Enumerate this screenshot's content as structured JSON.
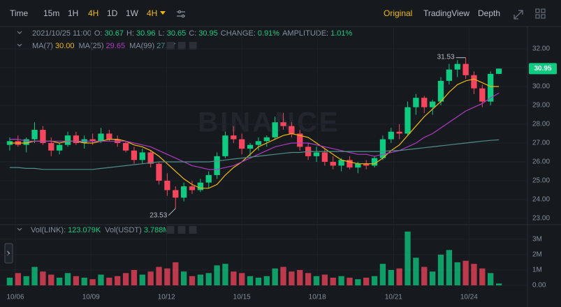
{
  "toolbar": {
    "left": [
      "Time",
      "15m",
      "1H",
      "4H",
      "1D",
      "1W",
      "4H"
    ],
    "active_left": [
      3,
      6
    ],
    "right": [
      "Original",
      "TradingView",
      "Depth"
    ],
    "active_right": 0
  },
  "info": {
    "datetime": "2021/10/25 11:00",
    "fields": [
      [
        "O:",
        "30.67"
      ],
      [
        "H:",
        "30.96"
      ],
      [
        "L:",
        "30.65"
      ],
      [
        "C:",
        "30.95"
      ],
      [
        "CHANGE:",
        "0.91%"
      ],
      [
        "AMPLITUDE:",
        "1.01%"
      ]
    ]
  },
  "chart_data": {
    "type": "candlestick",
    "watermark": "BINANCE",
    "up_color": "#0ecb81",
    "down_color": "#f6465d",
    "grid": true,
    "xlim": [
      -0.5,
      59.5
    ],
    "xticks": [
      {
        "value": 0.68,
        "label": "10/06"
      },
      {
        "value": 9.8,
        "label": "10/09"
      },
      {
        "value": 18.9,
        "label": "10/12"
      },
      {
        "value": 28,
        "label": "10/15"
      },
      {
        "value": 37.1,
        "label": "10/18"
      },
      {
        "value": 46.3,
        "label": "10/21"
      },
      {
        "value": 55.4,
        "label": "10/24"
      }
    ],
    "ylim": [
      22.74,
      33.11
    ],
    "yticks": [
      {
        "value": 23,
        "label": "23.00"
      },
      {
        "value": 24,
        "label": "24.00"
      },
      {
        "value": 25,
        "label": "25.00"
      },
      {
        "value": 26,
        "label": "26.00"
      },
      {
        "value": 27,
        "label": "27.00"
      },
      {
        "value": 28,
        "label": "28.00"
      },
      {
        "value": 29,
        "label": "29.00"
      },
      {
        "value": 30,
        "label": "30.00"
      },
      {
        "value": 31,
        "label": "31.00"
      },
      {
        "value": 32,
        "label": "32.00"
      }
    ],
    "open": [
      26.9,
      27.1,
      26.9,
      27.2,
      27.7,
      27.0,
      26.6,
      26.9,
      27.4,
      27.0,
      27.2,
      27.1,
      27.5,
      27.2,
      27.0,
      26.6,
      26.1,
      26.5,
      25.9,
      25.0,
      24.5,
      24.1,
      24.7,
      24.5,
      24.9,
      25.3,
      26.3,
      27.4,
      27.2,
      26.7,
      26.9,
      27.1,
      27.3,
      28.1,
      27.9,
      27.5,
      26.8,
      26.3,
      26.5,
      26.0,
      25.8,
      26.1,
      25.7,
      25.9,
      25.8,
      26.2,
      27.2,
      27.6,
      27.5,
      28.9,
      29.4,
      28.9,
      29.2,
      30.3,
      30.9,
      31.2,
      30.6,
      29.9,
      29.2,
      30.67
    ],
    "high": [
      27.3,
      27.4,
      27.3,
      28.1,
      27.9,
      27.3,
      27.0,
      27.6,
      27.6,
      27.4,
      27.5,
      27.8,
      27.7,
      27.4,
      27.1,
      26.8,
      26.7,
      26.6,
      26.0,
      25.4,
      24.7,
      24.9,
      25.0,
      25.1,
      25.5,
      26.5,
      27.6,
      27.9,
      27.5,
      27.0,
      27.3,
      27.4,
      28.4,
      28.6,
      28.1,
      27.7,
      27.0,
      26.8,
      26.7,
      26.3,
      26.2,
      26.3,
      26.0,
      26.1,
      26.3,
      27.4,
      27.8,
      28.0,
      29.2,
      29.6,
      29.5,
      29.3,
      30.5,
      31.2,
      31.4,
      31.53,
      30.8,
      30.1,
      30.8,
      30.96
    ],
    "low": [
      26.6,
      26.8,
      26.5,
      27.0,
      26.9,
      26.3,
      26.4,
      26.8,
      26.9,
      26.7,
      26.9,
      27.0,
      27.1,
      26.8,
      26.5,
      25.9,
      25.9,
      25.7,
      24.8,
      24.2,
      23.53,
      23.9,
      24.3,
      24.4,
      24.6,
      25.1,
      26.2,
      27.0,
      26.4,
      26.3,
      26.6,
      26.8,
      27.2,
      27.7,
      27.3,
      26.6,
      26.1,
      26.0,
      25.8,
      25.6,
      25.5,
      25.6,
      25.4,
      25.6,
      25.7,
      26.1,
      27.0,
      27.2,
      27.4,
      28.5,
      28.6,
      28.5,
      29.0,
      30.1,
      30.5,
      30.4,
      29.6,
      28.9,
      29.0,
      30.65
    ],
    "close": [
      27.1,
      26.9,
      27.2,
      27.7,
      27.0,
      26.6,
      26.9,
      27.4,
      27.0,
      27.2,
      27.1,
      27.5,
      27.2,
      27.0,
      26.6,
      26.1,
      26.5,
      25.9,
      25.0,
      24.5,
      24.1,
      24.7,
      24.5,
      24.9,
      25.3,
      26.3,
      27.4,
      27.2,
      26.7,
      26.9,
      27.1,
      27.3,
      28.1,
      27.9,
      27.5,
      26.8,
      26.3,
      26.5,
      26.0,
      25.8,
      26.1,
      25.7,
      25.9,
      25.8,
      26.2,
      27.2,
      27.6,
      27.5,
      28.9,
      29.4,
      28.9,
      29.2,
      30.3,
      30.9,
      31.2,
      30.6,
      29.9,
      29.2,
      30.67,
      30.95
    ],
    "last_price": 30.95,
    "ma": [
      {
        "name": "MA(7)",
        "current": "30.00",
        "color": "#f0b90b",
        "values": [
          27.0,
          27.0,
          27.0,
          27.1,
          27.1,
          27.1,
          27.0,
          27.1,
          27.1,
          27.0,
          27.0,
          27.1,
          27.2,
          27.2,
          27.1,
          26.9,
          26.8,
          26.6,
          26.3,
          25.9,
          25.5,
          25.1,
          24.8,
          24.6,
          24.6,
          24.8,
          25.3,
          25.7,
          26.0,
          26.4,
          26.8,
          27.0,
          27.2,
          27.4,
          27.5,
          27.4,
          27.3,
          27.0,
          26.7,
          26.4,
          26.1,
          26.0,
          25.9,
          25.9,
          25.9,
          26.2,
          26.6,
          26.9,
          27.4,
          27.9,
          28.4,
          28.8,
          29.2,
          29.7,
          30.1,
          30.3,
          30.4,
          30.2,
          30.0,
          30.0
        ]
      },
      {
        "name": "MA(25)",
        "current": "29.65",
        "color": "#b03ac4",
        "values": [
          27.2,
          27.2,
          27.1,
          27.1,
          27.1,
          27.1,
          27.1,
          27.1,
          27.1,
          27.1,
          27.1,
          27.1,
          27.1,
          27.1,
          27.1,
          27.0,
          26.9,
          26.8,
          26.6,
          26.4,
          26.2,
          26.0,
          25.8,
          25.7,
          25.6,
          25.6,
          25.7,
          25.8,
          26.0,
          26.2,
          26.4,
          26.6,
          26.8,
          26.9,
          27.0,
          27.0,
          27.0,
          26.9,
          26.8,
          26.7,
          26.6,
          26.5,
          26.4,
          26.4,
          26.3,
          26.4,
          26.5,
          26.6,
          26.8,
          27.0,
          27.3,
          27.5,
          27.8,
          28.1,
          28.4,
          28.7,
          28.9,
          29.1,
          29.4,
          29.65
        ]
      },
      {
        "name": "MA(99)",
        "current": "27.17",
        "color": "#4f8f8a",
        "values": [
          25.7,
          25.7,
          25.65,
          25.65,
          25.6,
          25.6,
          25.6,
          25.6,
          25.6,
          25.6,
          25.6,
          25.65,
          25.7,
          25.75,
          25.8,
          25.85,
          25.9,
          25.95,
          26.0,
          26.0,
          26.0,
          26.0,
          26.0,
          26.0,
          26.0,
          26.05,
          26.1,
          26.15,
          26.2,
          26.25,
          26.3,
          26.35,
          26.4,
          26.45,
          26.5,
          26.5,
          26.55,
          26.55,
          26.55,
          26.55,
          26.55,
          26.55,
          26.55,
          26.55,
          26.55,
          26.55,
          26.6,
          26.6,
          26.65,
          26.7,
          26.75,
          26.8,
          26.85,
          26.9,
          26.95,
          27.0,
          27.05,
          27.1,
          27.14,
          27.17
        ]
      }
    ],
    "volume": {
      "labels": [
        [
          "Vol(LINK):",
          "123.079K"
        ],
        [
          "Vol(USDT)",
          "3.788M"
        ]
      ],
      "ylim": [
        -0.41,
        3.95
      ],
      "yticks": [
        {
          "value": 0,
          "label": "0.00"
        },
        {
          "value": 1,
          "label": "1M"
        },
        {
          "value": 2,
          "label": "2M"
        },
        {
          "value": 3,
          "label": "3M"
        }
      ],
      "values": [
        0.5,
        0.8,
        0.6,
        1.2,
        0.9,
        0.7,
        0.5,
        0.8,
        0.6,
        0.5,
        0.4,
        0.7,
        0.5,
        0.6,
        0.8,
        1.0,
        0.7,
        0.9,
        1.2,
        1.1,
        1.5,
        0.9,
        0.6,
        0.7,
        0.8,
        1.3,
        1.4,
        0.9,
        0.8,
        0.6,
        0.5,
        0.6,
        1.1,
        1.2,
        0.9,
        1.0,
        0.8,
        0.6,
        0.7,
        0.5,
        0.6,
        0.5,
        0.4,
        0.5,
        0.6,
        1.4,
        1.0,
        1.1,
        3.5,
        1.8,
        1.2,
        0.9,
        2.0,
        2.3,
        1.5,
        1.6,
        1.4,
        1.1,
        0.8,
        0.12
      ]
    }
  }
}
